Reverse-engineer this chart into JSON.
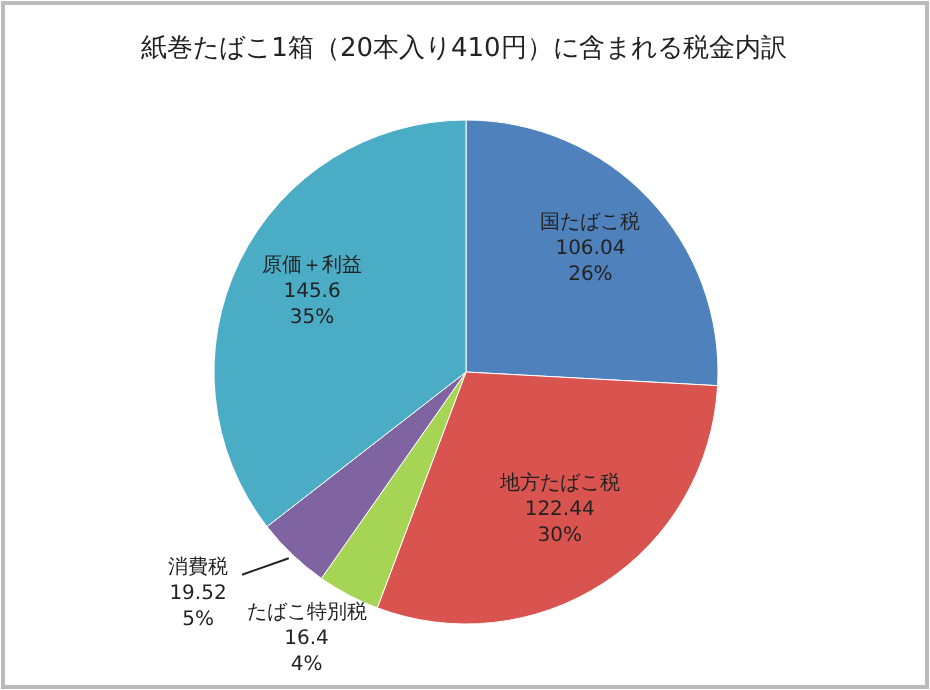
{
  "chart_data": {
    "type": "pie",
    "title": "紙巻たばこ1箱（20本入り410円）に含まれる税金内訳",
    "categories": [
      "国たばこ税",
      "地方たばこ税",
      "たばこ特別税",
      "消費税",
      "原価＋利益"
    ],
    "values": [
      106.04,
      122.44,
      16.4,
      19.52,
      145.6
    ],
    "value_labels": [
      "106.04\n26%",
      "122.44\n30%",
      "16.4\n4%",
      "19.52\n5%",
      "145.6\n35%"
    ],
    "colors": [
      "#4f81bd",
      "#d9534f",
      "#a6d454",
      "#8064a2",
      "#4bacc6"
    ],
    "legend": false
  }
}
